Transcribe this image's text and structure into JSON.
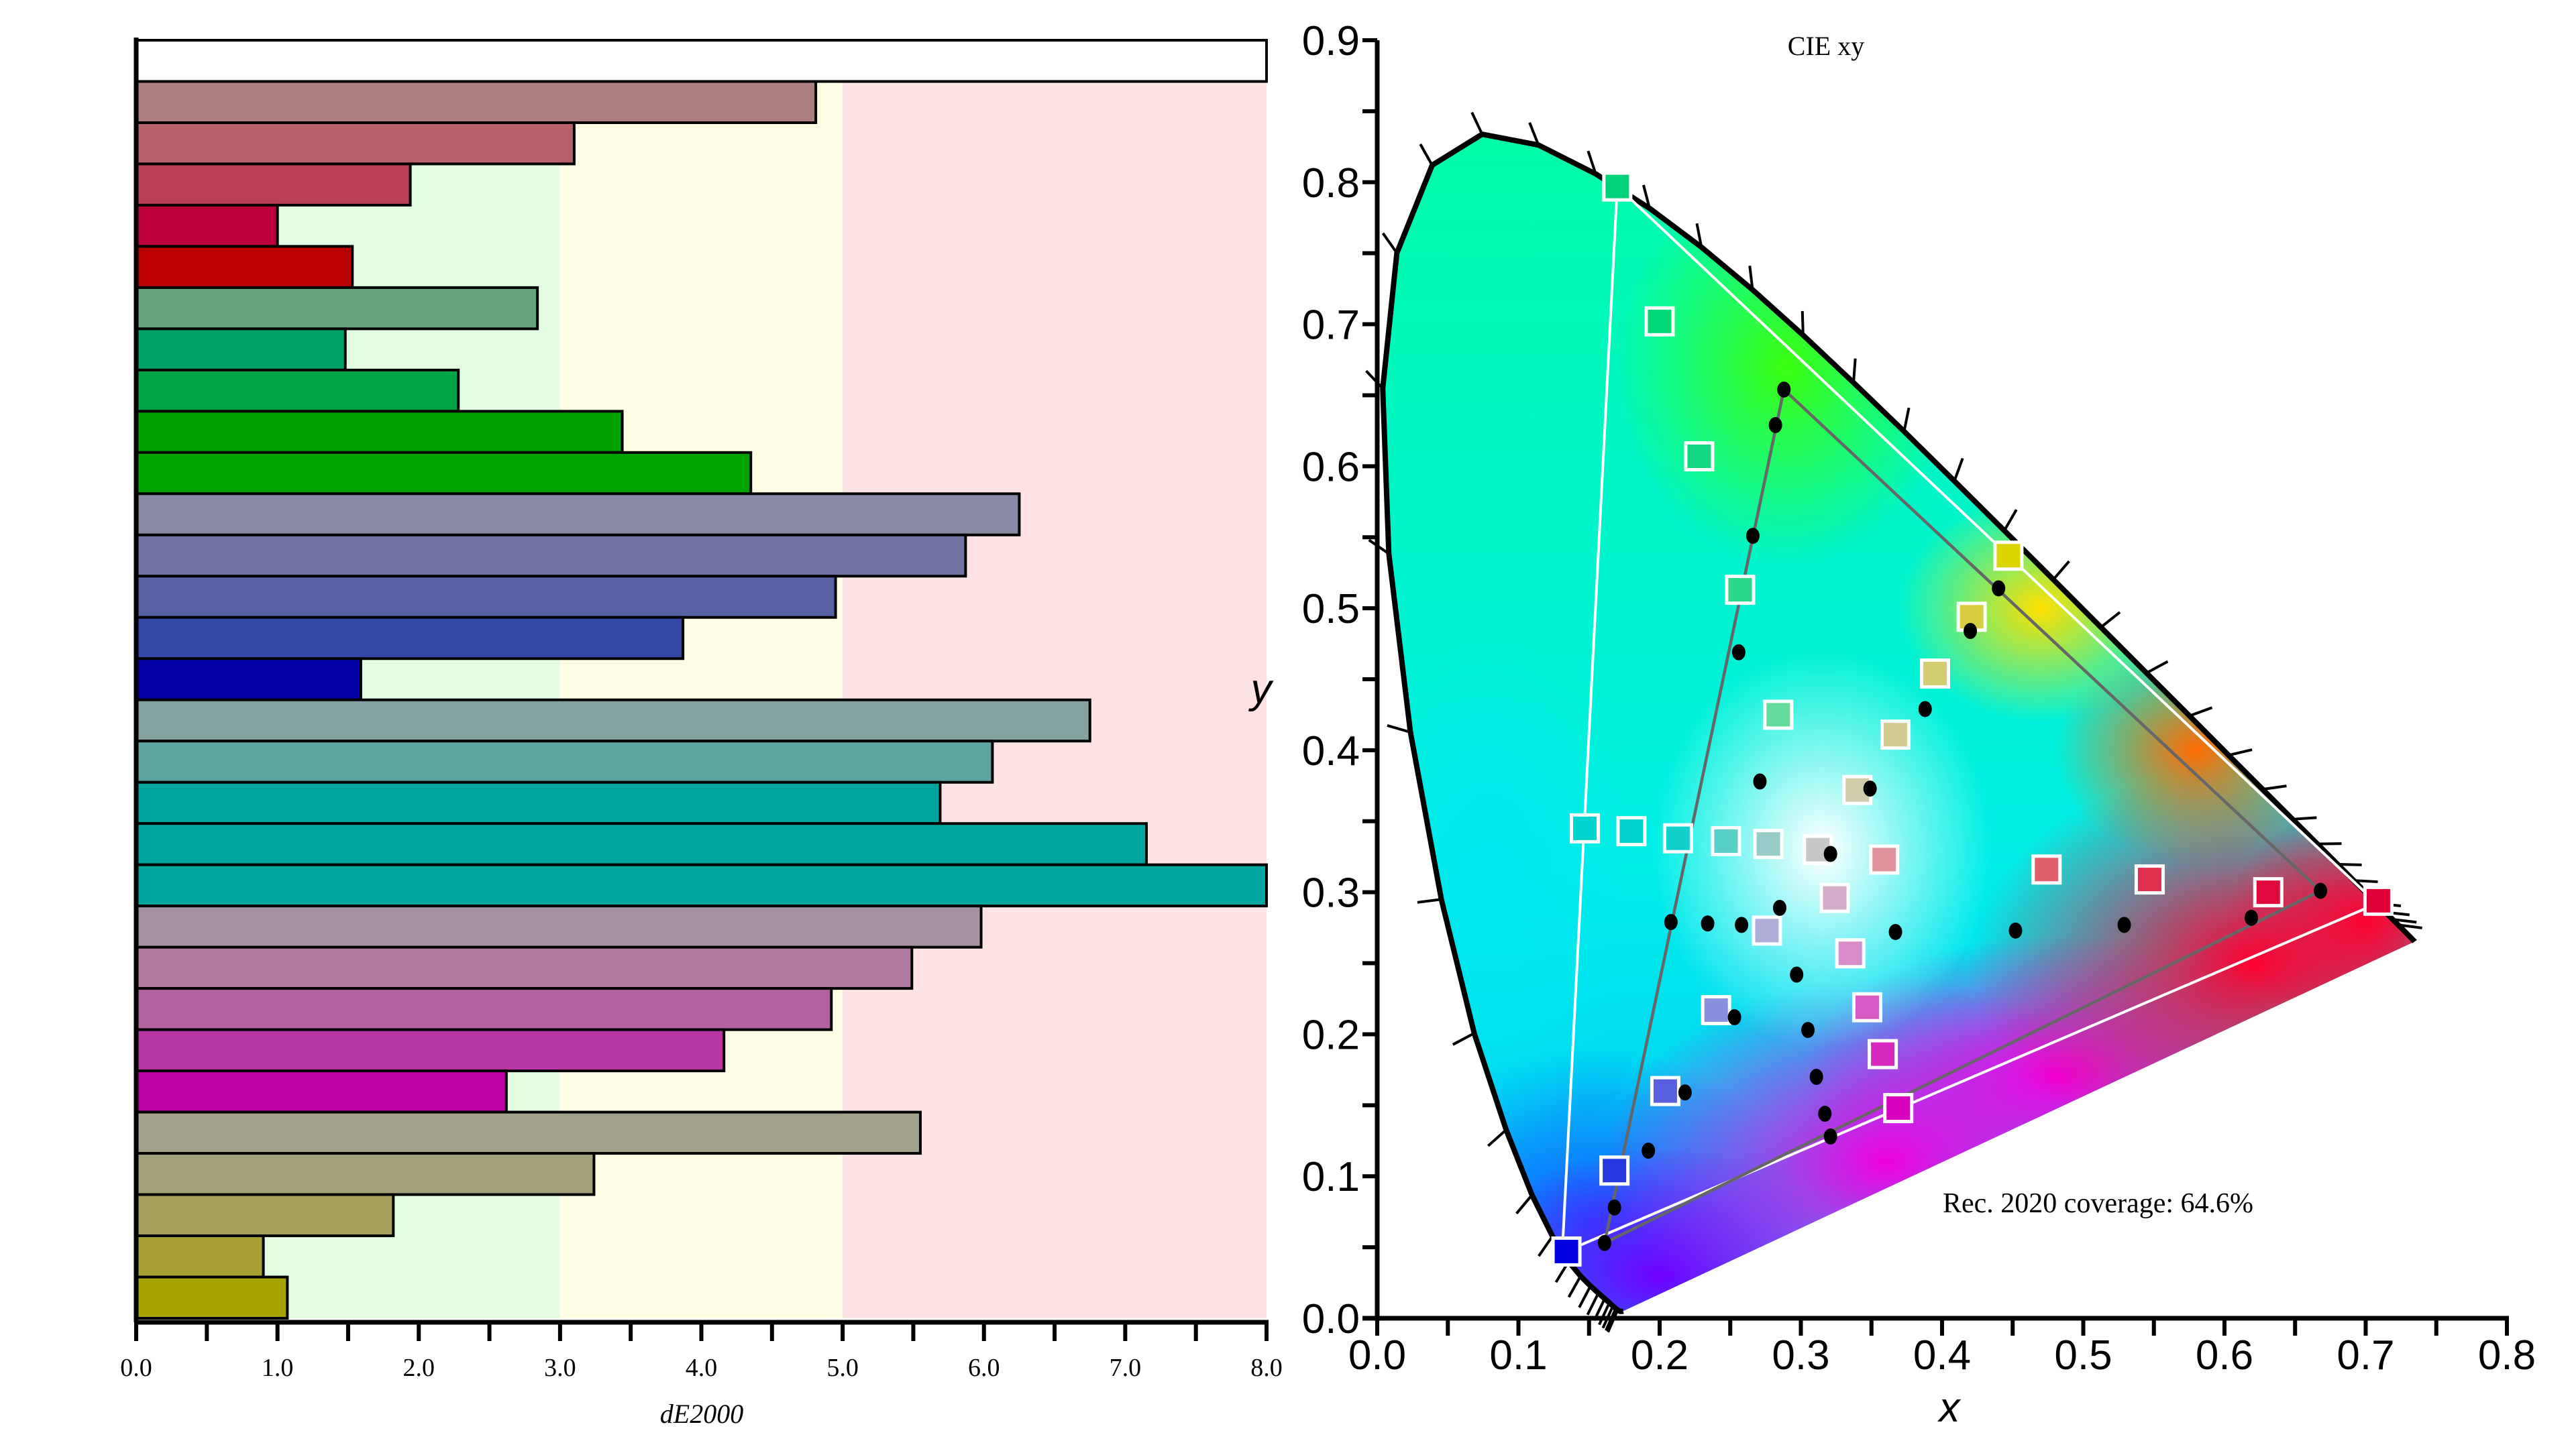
{
  "chart_data": [
    {
      "type": "bar",
      "orientation": "horizontal",
      "title": "",
      "xlabel": "dE2000",
      "ylabel": "",
      "xlim": [
        0,
        8
      ],
      "xticks": [
        "0.0",
        "1.0",
        "2.0",
        "3.0",
        "4.0",
        "5.0",
        "6.0",
        "7.0",
        "8.0"
      ],
      "minor_tick_step": 0.5,
      "grid": false,
      "threshold_bands": [
        {
          "from": 0,
          "to": 3,
          "color": "#e3fde3"
        },
        {
          "from": 3,
          "to": 5,
          "color": "#fefee4"
        },
        {
          "from": 5,
          "to": 8,
          "color": "#fee3e5"
        }
      ],
      "bars": [
        {
          "value": 8.0,
          "color": "#ffffff"
        },
        {
          "value": 4.81,
          "color": "#ae7f80"
        },
        {
          "value": 3.1,
          "color": "#b6606a"
        },
        {
          "value": 1.94,
          "color": "#b94053"
        },
        {
          "value": 1.0,
          "color": "#bb003a"
        },
        {
          "value": 1.53,
          "color": "#bc0000"
        },
        {
          "value": 2.84,
          "color": "#65a47c"
        },
        {
          "value": 1.48,
          "color": "#00a366"
        },
        {
          "value": 2.28,
          "color": "#00a346"
        },
        {
          "value": 3.44,
          "color": "#00a200"
        },
        {
          "value": 4.35,
          "color": "#00a400"
        },
        {
          "value": 6.25,
          "color": "#8889a2"
        },
        {
          "value": 5.87,
          "color": "#6f73a2"
        },
        {
          "value": 4.95,
          "color": "#5660a4"
        },
        {
          "value": 3.87,
          "color": "#3247a6"
        },
        {
          "value": 1.59,
          "color": "#0000a5"
        },
        {
          "value": 6.75,
          "color": "#85a2a1"
        },
        {
          "value": 6.06,
          "color": "#5ea2a1"
        },
        {
          "value": 5.69,
          "color": "#00a59f"
        },
        {
          "value": 7.15,
          "color": "#00a59f"
        },
        {
          "value": 8.0,
          "color": "#00a6a0"
        },
        {
          "value": 5.98,
          "color": "#a790a2"
        },
        {
          "value": 5.49,
          "color": "#af79a2"
        },
        {
          "value": 4.92,
          "color": "#b462a2"
        },
        {
          "value": 4.16,
          "color": "#b736a3"
        },
        {
          "value": 2.62,
          "color": "#bb00a6"
        },
        {
          "value": 5.55,
          "color": "#a2a189"
        },
        {
          "value": 3.24,
          "color": "#a3a177"
        },
        {
          "value": 1.82,
          "color": "#a5a15c"
        },
        {
          "value": 0.9,
          "color": "#a6a132"
        },
        {
          "value": 1.07,
          "color": "#a6a300"
        }
      ]
    },
    {
      "type": "scatter",
      "title": "CIE xy",
      "xlabel": "x",
      "ylabel": "y",
      "xlim": [
        0,
        0.8
      ],
      "ylim": [
        0,
        0.9
      ],
      "xticks": [
        "0.0",
        "0.1",
        "0.2",
        "0.3",
        "0.4",
        "0.5",
        "0.6",
        "0.7",
        "0.8"
      ],
      "yticks": [
        "0.0",
        "0.1",
        "0.2",
        "0.3",
        "0.4",
        "0.5",
        "0.6",
        "0.7",
        "0.8",
        "0.9"
      ],
      "annotation": "Rec. 2020 coverage: 64.6%",
      "rec2020_triangle": [
        [
          0.708,
          0.292
        ],
        [
          0.17,
          0.797
        ],
        [
          0.131,
          0.046
        ]
      ],
      "measured_gamut": [
        [
          0.668,
          0.301
        ],
        [
          0.288,
          0.654
        ],
        [
          0.161,
          0.053
        ]
      ],
      "target_points": [
        {
          "x": 0.17,
          "y": 0.797,
          "color": "#00d27a"
        },
        {
          "x": 0.2,
          "y": 0.702,
          "color": "#00d878"
        },
        {
          "x": 0.228,
          "y": 0.607,
          "color": "#10d880"
        },
        {
          "x": 0.257,
          "y": 0.513,
          "color": "#2ad888"
        },
        {
          "x": 0.284,
          "y": 0.425,
          "color": "#62dc98"
        },
        {
          "x": 0.34,
          "y": 0.372,
          "color": "#d0ccaa"
        },
        {
          "x": 0.367,
          "y": 0.411,
          "color": "#d2cc90"
        },
        {
          "x": 0.395,
          "y": 0.454,
          "color": "#d4cc70"
        },
        {
          "x": 0.421,
          "y": 0.494,
          "color": "#d8cc40"
        },
        {
          "x": 0.447,
          "y": 0.537,
          "color": "#dcd400"
        },
        {
          "x": 0.147,
          "y": 0.345,
          "color": "#00d4cc"
        },
        {
          "x": 0.18,
          "y": 0.343,
          "color": "#00d4cc"
        },
        {
          "x": 0.213,
          "y": 0.338,
          "color": "#10d0cc"
        },
        {
          "x": 0.247,
          "y": 0.336,
          "color": "#58d0c8"
        },
        {
          "x": 0.277,
          "y": 0.334,
          "color": "#98ccc8"
        },
        {
          "x": 0.312,
          "y": 0.33,
          "color": "#c8c8c8"
        },
        {
          "x": 0.324,
          "y": 0.296,
          "color": "#d4aec8"
        },
        {
          "x": 0.276,
          "y": 0.273,
          "color": "#aeaed8"
        },
        {
          "x": 0.359,
          "y": 0.323,
          "color": "#e0929a"
        },
        {
          "x": 0.474,
          "y": 0.316,
          "color": "#e0606c"
        },
        {
          "x": 0.547,
          "y": 0.309,
          "color": "#e03050"
        },
        {
          "x": 0.631,
          "y": 0.3,
          "color": "#e00a3c"
        },
        {
          "x": 0.709,
          "y": 0.294,
          "color": "#e0003a"
        },
        {
          "x": 0.335,
          "y": 0.257,
          "color": "#d88cc8"
        },
        {
          "x": 0.347,
          "y": 0.219,
          "color": "#d858c4"
        },
        {
          "x": 0.358,
          "y": 0.186,
          "color": "#d828c0"
        },
        {
          "x": 0.369,
          "y": 0.148,
          "color": "#d800bc"
        },
        {
          "x": 0.24,
          "y": 0.217,
          "color": "#8890dc"
        },
        {
          "x": 0.204,
          "y": 0.16,
          "color": "#5860e0"
        },
        {
          "x": 0.168,
          "y": 0.104,
          "color": "#2838e0"
        },
        {
          "x": 0.134,
          "y": 0.047,
          "color": "#0000e0"
        }
      ],
      "measured_points": [
        {
          "x": 0.288,
          "y": 0.654
        },
        {
          "x": 0.282,
          "y": 0.629
        },
        {
          "x": 0.266,
          "y": 0.551
        },
        {
          "x": 0.256,
          "y": 0.469
        },
        {
          "x": 0.44,
          "y": 0.514
        },
        {
          "x": 0.42,
          "y": 0.484
        },
        {
          "x": 0.388,
          "y": 0.429
        },
        {
          "x": 0.349,
          "y": 0.373
        },
        {
          "x": 0.271,
          "y": 0.378
        },
        {
          "x": 0.321,
          "y": 0.327
        },
        {
          "x": 0.208,
          "y": 0.279
        },
        {
          "x": 0.234,
          "y": 0.278
        },
        {
          "x": 0.258,
          "y": 0.277
        },
        {
          "x": 0.285,
          "y": 0.289
        },
        {
          "x": 0.297,
          "y": 0.242
        },
        {
          "x": 0.367,
          "y": 0.272
        },
        {
          "x": 0.452,
          "y": 0.273
        },
        {
          "x": 0.529,
          "y": 0.277
        },
        {
          "x": 0.619,
          "y": 0.282
        },
        {
          "x": 0.668,
          "y": 0.301
        },
        {
          "x": 0.253,
          "y": 0.212
        },
        {
          "x": 0.305,
          "y": 0.203
        },
        {
          "x": 0.311,
          "y": 0.17
        },
        {
          "x": 0.317,
          "y": 0.144
        },
        {
          "x": 0.321,
          "y": 0.128
        },
        {
          "x": 0.218,
          "y": 0.159
        },
        {
          "x": 0.192,
          "y": 0.118
        },
        {
          "x": 0.168,
          "y": 0.078
        },
        {
          "x": 0.161,
          "y": 0.053
        }
      ],
      "spectral_locus": [
        [
          0.1741,
          0.005
        ],
        [
          0.174,
          0.005
        ],
        [
          0.1738,
          0.0049
        ],
        [
          0.1736,
          0.0049
        ],
        [
          0.1733,
          0.0048
        ],
        [
          0.173,
          0.0048
        ],
        [
          0.1726,
          0.0048
        ],
        [
          0.1721,
          0.0048
        ],
        [
          0.1714,
          0.0051
        ],
        [
          0.1703,
          0.0058
        ],
        [
          0.1689,
          0.0069
        ],
        [
          0.1669,
          0.0086
        ],
        [
          0.1644,
          0.0109
        ],
        [
          0.1611,
          0.0138
        ],
        [
          0.1566,
          0.0177
        ],
        [
          0.151,
          0.0227
        ],
        [
          0.144,
          0.0297
        ],
        [
          0.1355,
          0.0399
        ],
        [
          0.1241,
          0.0578
        ],
        [
          0.1096,
          0.0868
        ],
        [
          0.0913,
          0.1327
        ],
        [
          0.0687,
          0.2007
        ],
        [
          0.0454,
          0.295
        ],
        [
          0.0235,
          0.4127
        ],
        [
          0.0082,
          0.5384
        ],
        [
          0.0039,
          0.6548
        ],
        [
          0.0139,
          0.7502
        ],
        [
          0.0389,
          0.812
        ],
        [
          0.0743,
          0.8338
        ],
        [
          0.1142,
          0.8262
        ],
        [
          0.1547,
          0.8059
        ],
        [
          0.1929,
          0.7816
        ],
        [
          0.2296,
          0.7543
        ],
        [
          0.2658,
          0.7243
        ],
        [
          0.3016,
          0.6923
        ],
        [
          0.3373,
          0.6589
        ],
        [
          0.3731,
          0.6245
        ],
        [
          0.4087,
          0.5896
        ],
        [
          0.4441,
          0.5547
        ],
        [
          0.4788,
          0.5202
        ],
        [
          0.5125,
          0.4866
        ],
        [
          0.5448,
          0.4544
        ],
        [
          0.5752,
          0.4242
        ],
        [
          0.6029,
          0.3965
        ],
        [
          0.627,
          0.3725
        ],
        [
          0.6482,
          0.3514
        ],
        [
          0.6658,
          0.334
        ],
        [
          0.6801,
          0.3197
        ],
        [
          0.6915,
          0.3083
        ],
        [
          0.7006,
          0.2993
        ],
        [
          0.7079,
          0.292
        ],
        [
          0.714,
          0.2859
        ],
        [
          0.719,
          0.2809
        ],
        [
          0.723,
          0.277
        ],
        [
          0.726,
          0.274
        ],
        [
          0.7283,
          0.2717
        ],
        [
          0.73,
          0.27
        ],
        [
          0.7311,
          0.2689
        ],
        [
          0.732,
          0.268
        ],
        [
          0.7327,
          0.2673
        ],
        [
          0.7334,
          0.2666
        ],
        [
          0.734,
          0.266
        ],
        [
          0.7344,
          0.2656
        ],
        [
          0.7346,
          0.2654
        ],
        [
          0.7347,
          0.2653
        ]
      ],
      "locus_tick_points": [
        [
          0.1355,
          0.0399
        ],
        [
          0.1241,
          0.0578
        ],
        [
          0.1096,
          0.0868
        ],
        [
          0.0913,
          0.1327
        ],
        [
          0.0687,
          0.2007
        ],
        [
          0.0454,
          0.295
        ],
        [
          0.0235,
          0.4127
        ],
        [
          0.0082,
          0.5384
        ],
        [
          0.0039,
          0.6548
        ],
        [
          0.0139,
          0.7502
        ],
        [
          0.0389,
          0.812
        ],
        [
          0.0743,
          0.8338
        ],
        [
          0.1142,
          0.8262
        ],
        [
          0.1547,
          0.8059
        ],
        [
          0.1929,
          0.7816
        ],
        [
          0.2296,
          0.7543
        ],
        [
          0.2658,
          0.7243
        ],
        [
          0.3016,
          0.6923
        ],
        [
          0.3373,
          0.6589
        ],
        [
          0.3731,
          0.6245
        ],
        [
          0.4087,
          0.5896
        ],
        [
          0.4441,
          0.5547
        ],
        [
          0.4788,
          0.5202
        ],
        [
          0.5125,
          0.4866
        ],
        [
          0.5448,
          0.4544
        ],
        [
          0.5752,
          0.4242
        ],
        [
          0.6029,
          0.3965
        ],
        [
          0.627,
          0.3725
        ],
        [
          0.6482,
          0.3514
        ],
        [
          0.6658,
          0.334
        ],
        [
          0.6801,
          0.3197
        ],
        [
          0.6915,
          0.3083
        ],
        [
          0.7006,
          0.2993
        ],
        [
          0.7079,
          0.292
        ],
        [
          0.714,
          0.2859
        ],
        [
          0.719,
          0.2809
        ],
        [
          0.723,
          0.277
        ],
        [
          0.144,
          0.0297
        ],
        [
          0.151,
          0.0227
        ],
        [
          0.1566,
          0.0177
        ],
        [
          0.1611,
          0.0138
        ],
        [
          0.1644,
          0.0109
        ],
        [
          0.1669,
          0.0086
        ],
        [
          0.1689,
          0.0069
        ],
        [
          0.1703,
          0.0058
        ]
      ],
      "colors": {
        "rec2020_line": "#ffffff",
        "measured_line": "#666666",
        "measured_dot": "#000000",
        "locus_outline": "#000000"
      }
    }
  ]
}
